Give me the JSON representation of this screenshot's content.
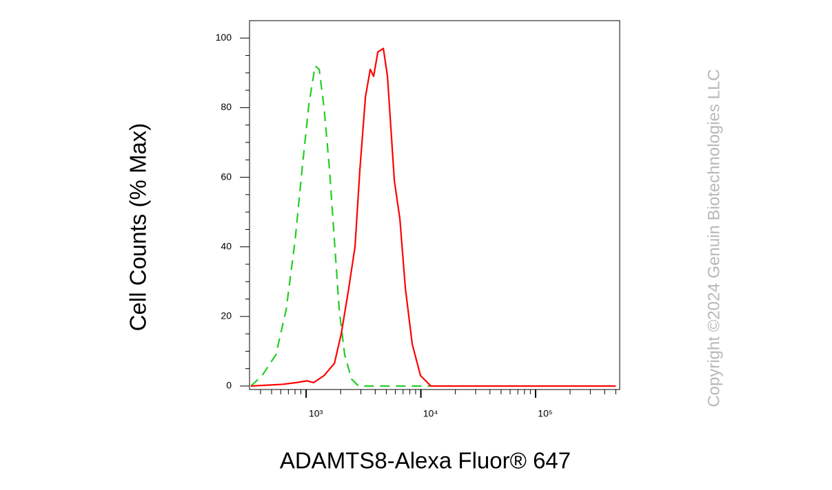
{
  "chart_data": {
    "type": "line",
    "xlabel": "ADAMTS8-Alexa Fluor® 647",
    "ylabel": "Cell Counts (% Max)",
    "annotation": "Copyright ©2024 Genuin Biotechnologies LLC",
    "xscale": "log",
    "xlim": [
      321,
      541000
    ],
    "ylim": [
      -1,
      105
    ],
    "xticks": [
      {
        "value": 1000,
        "label": "10³"
      },
      {
        "value": 10000,
        "label": "10⁴"
      },
      {
        "value": 100000,
        "label": "10⁵"
      }
    ],
    "xminor_ticks": [
      400,
      500,
      600,
      700,
      800,
      900,
      2000,
      3000,
      4000,
      5000,
      6000,
      7000,
      8000,
      9000,
      20000,
      30000,
      40000,
      50000,
      60000,
      70000,
      80000,
      90000,
      200000,
      300000,
      400000,
      500000
    ],
    "yticks": [
      0,
      20,
      40,
      60,
      80,
      100
    ],
    "yminor_ticks": [
      5,
      10,
      15,
      25,
      30,
      35,
      45,
      50,
      55,
      65,
      70,
      75,
      85,
      90,
      95
    ],
    "series": [
      {
        "color": "#22cc22",
        "dashed": true,
        "x": [
          330,
          413,
          545,
          670,
          802,
          920,
          1057,
          1197,
          1300,
          1432,
          1600,
          1763,
          1941,
          2167,
          2489,
          2858,
          5000,
          20000,
          100000,
          500000
        ],
        "values": [
          0,
          3,
          9,
          22,
          42,
          62,
          81,
          92,
          91,
          80,
          62,
          42,
          22,
          9,
          2,
          0,
          0,
          0,
          0,
          0
        ]
      },
      {
        "color": "#ff0000",
        "dashed": false,
        "x": [
          330,
          625,
          824,
          1014,
          1164,
          1432,
          1763,
          2023,
          2323,
          2667,
          2938,
          3286,
          3620,
          3877,
          4217,
          4710,
          5117,
          5875,
          6565,
          7331,
          8415,
          9931,
          12220,
          30000,
          100000,
          500000
        ],
        "values": [
          0,
          0.5,
          1,
          1.5,
          1,
          3,
          6.5,
          15,
          27,
          40,
          62,
          83,
          91,
          89,
          96,
          97,
          89,
          59,
          48,
          28,
          12,
          3,
          0,
          0,
          0,
          0
        ]
      }
    ]
  }
}
